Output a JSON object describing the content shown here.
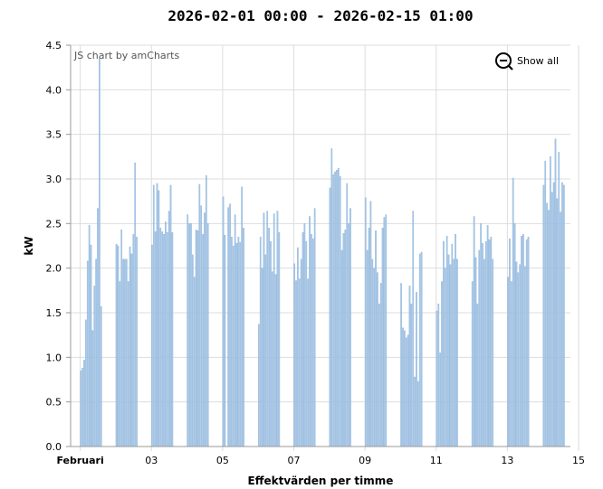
{
  "chart_data": {
    "type": "bar",
    "title": "2026-02-01 00:00 - 2026-02-15 01:00",
    "xlabel": "Effektvärden per timme",
    "ylabel": "kW",
    "ylim": [
      0,
      4.5
    ],
    "yticks": [
      "0.0",
      "0.5",
      "1.0",
      "1.5",
      "2.0",
      "2.5",
      "3.0",
      "3.5",
      "4.0",
      "4.5"
    ],
    "xticks": [
      "Februari",
      "03",
      "05",
      "07",
      "09",
      "11",
      "13",
      "15"
    ],
    "xlim": [
      "2026-02-01 00:00",
      "2026-02-15 01:00"
    ],
    "grid": true,
    "credit": "JS chart by amCharts",
    "zoom_out_label": "Show all",
    "colors": {
      "bar_fill": "#a9c9e8",
      "bar_stroke": "#8fb3d9",
      "grid": "#dddddd",
      "axis": "#999999"
    },
    "day_values": [
      [
        0.85,
        0.88,
        0.97,
        1.42,
        2.08,
        2.48,
        2.26,
        1.3,
        1.8,
        2.1,
        2.67,
        4.35,
        1.57
      ],
      [
        2.27,
        2.25,
        1.85,
        2.43,
        2.1,
        2.1,
        2.1,
        1.85,
        2.24,
        2.16,
        2.38,
        3.18,
        2.35
      ],
      [
        2.26,
        2.93,
        2.41,
        2.95,
        2.87,
        2.45,
        2.41,
        2.38,
        2.52,
        2.4,
        2.64,
        2.93,
        2.4
      ],
      [
        2.6,
        2.5,
        2.5,
        2.15,
        1.9,
        2.43,
        2.42,
        2.94,
        2.7,
        2.38,
        2.62,
        3.04,
        2.5
      ],
      [
        2.8,
        2.37,
        0.0,
        2.68,
        2.72,
        2.35,
        2.25,
        2.6,
        2.28,
        2.35,
        2.29,
        2.91,
        2.45
      ],
      [
        1.37,
        2.35,
        2.0,
        2.62,
        2.15,
        2.64,
        2.45,
        2.3,
        1.96,
        2.61,
        1.93,
        2.64,
        2.4
      ],
      [
        2.05,
        1.86,
        2.23,
        1.88,
        2.1,
        2.4,
        2.5,
        2.3,
        1.88,
        2.58,
        2.38,
        2.33,
        2.67
      ],
      [
        2.9,
        3.34,
        3.05,
        3.08,
        3.1,
        3.12,
        3.03,
        2.2,
        2.39,
        2.43,
        2.95,
        2.5,
        2.67
      ],
      [
        2.79,
        2.2,
        2.45,
        2.75,
        2.1,
        2.0,
        2.42,
        1.95,
        1.6,
        1.83,
        2.45,
        2.57,
        2.6
      ],
      [
        1.83,
        1.33,
        1.3,
        1.22,
        1.25,
        1.8,
        1.6,
        2.64,
        0.78,
        1.73,
        0.73,
        2.16,
        2.18
      ],
      [
        1.52,
        1.6,
        1.05,
        1.85,
        2.3,
        2.0,
        2.36,
        2.15,
        2.04,
        2.27,
        2.1,
        2.38,
        2.1
      ],
      [
        1.85,
        2.58,
        2.12,
        1.6,
        2.2,
        2.5,
        2.28,
        2.1,
        2.3,
        2.48,
        2.32,
        2.35,
        2.1
      ],
      [
        1.9,
        2.33,
        1.85,
        3.01,
        2.5,
        2.07,
        1.95,
        2.04,
        2.36,
        2.38,
        2.02,
        2.32,
        2.35
      ],
      [
        2.93,
        3.2,
        2.73,
        2.65,
        3.25,
        2.85,
        2.96,
        3.45,
        2.78,
        3.3,
        2.63,
        2.96,
        2.93
      ]
    ]
  }
}
